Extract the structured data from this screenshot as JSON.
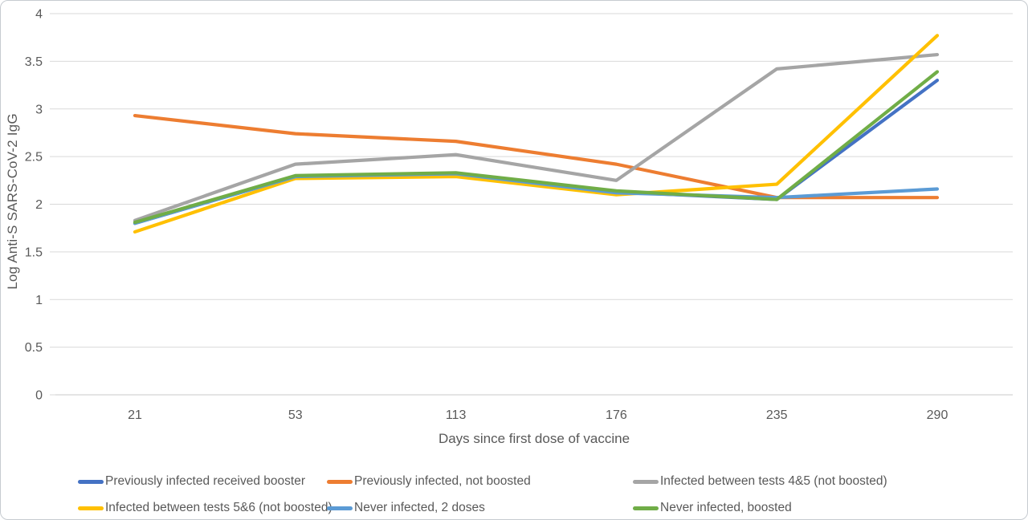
{
  "figure": {
    "background_color": "#ffffff",
    "frame_border_color": "#c6cbd0",
    "gridline_color": "#d9d9d9",
    "axis_line_color": "#c9c9c9",
    "text_color": "#595959"
  },
  "chart_data": {
    "type": "line",
    "title": "",
    "xlabel": "Days since first dose of vaccine",
    "ylabel": "Log Anti-S SARS-CoV-2 IgG",
    "categories": [
      "21",
      "53",
      "113",
      "176",
      "235",
      "290"
    ],
    "ylim": [
      0,
      4
    ],
    "ytick_labels": [
      "0",
      "0.5",
      "1",
      "1.5",
      "2",
      "2.5",
      "3",
      "3.5",
      "4"
    ],
    "ytick_values": [
      0,
      0.5,
      1,
      1.5,
      2,
      2.5,
      3,
      3.5,
      4
    ],
    "grid": "horizontal",
    "legend_position": "bottom",
    "series": [
      {
        "name": "Previously infected received booster",
        "color": "#4472C4",
        "values": [
          1.8,
          2.29,
          2.32,
          2.13,
          2.05,
          3.3
        ]
      },
      {
        "name": "Previously infected, not boosted",
        "color": "#ED7D31",
        "values": [
          2.93,
          2.74,
          2.66,
          2.42,
          2.07,
          2.07
        ]
      },
      {
        "name": "Infected between tests 4&5 (not boosted)",
        "color": "#A5A5A5",
        "values": [
          1.83,
          2.42,
          2.52,
          2.25,
          3.42,
          3.57
        ]
      },
      {
        "name": "Infected between tests 5&6 (not boosted)",
        "color": "#FFC000",
        "values": [
          1.71,
          2.27,
          2.29,
          2.1,
          2.21,
          3.77
        ]
      },
      {
        "name": "Never infected, 2 doses",
        "color": "#5B9BD5",
        "values": [
          1.8,
          2.29,
          2.32,
          2.12,
          2.07,
          2.16
        ]
      },
      {
        "name": "Never infected, boosted",
        "color": "#70AD47",
        "values": [
          1.81,
          2.3,
          2.33,
          2.14,
          2.05,
          3.39
        ]
      }
    ]
  }
}
